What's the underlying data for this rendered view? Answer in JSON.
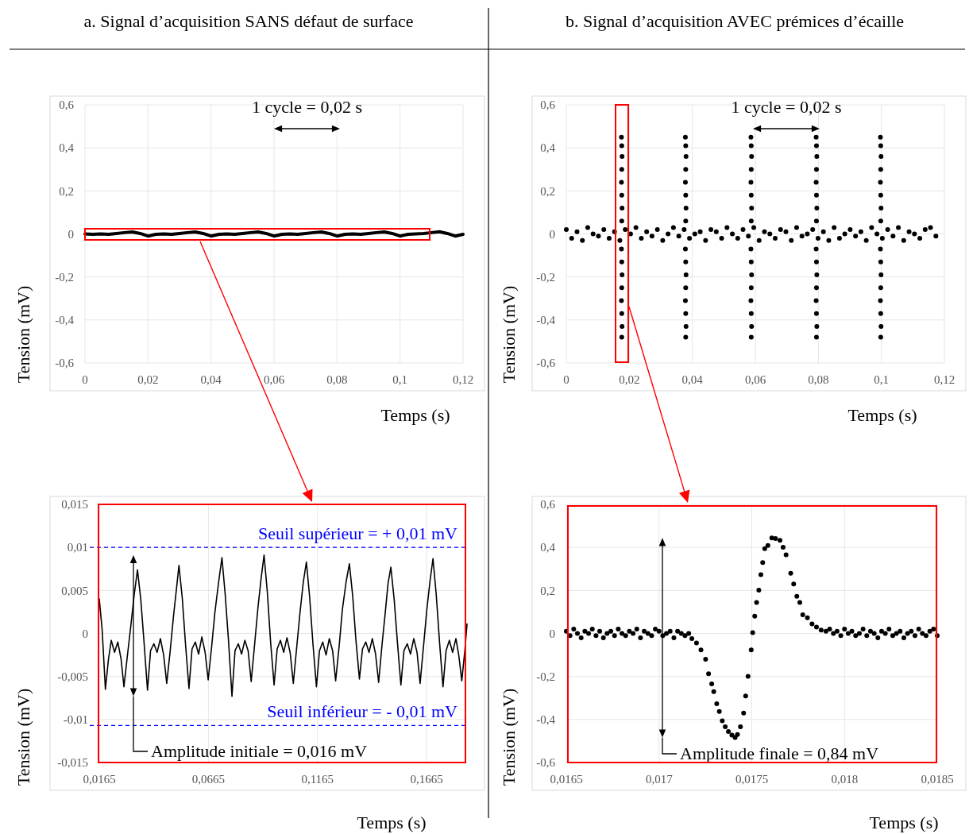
{
  "chart_data": [
    {
      "type": "line",
      "title": "a. Signal d’acquisition SANS défaut de surface",
      "xlabel": "Temps (s)",
      "ylabel": "Tension (mV)",
      "xlim": [
        0,
        0.12
      ],
      "ylim": [
        -0.6,
        0.6
      ],
      "xticks": [
        {
          "value": 0,
          "label": "0"
        },
        {
          "value": 0.02,
          "label": "0,02"
        },
        {
          "value": 0.04,
          "label": "0,04"
        },
        {
          "value": 0.06,
          "label": "0,06"
        },
        {
          "value": 0.08,
          "label": "0,08"
        },
        {
          "value": 0.1,
          "label": "0,1"
        },
        {
          "value": 0.12,
          "label": "0,12"
        }
      ],
      "yticks": [
        {
          "value": -0.6,
          "label": "-0,6"
        },
        {
          "value": -0.4,
          "label": "-0,4"
        },
        {
          "value": -0.2,
          "label": "-0,2"
        },
        {
          "value": 0,
          "label": "0"
        },
        {
          "value": 0.2,
          "label": "0,2"
        },
        {
          "value": 0.4,
          "label": "0,4"
        },
        {
          "value": 0.6,
          "label": "0,6"
        }
      ],
      "grid": true,
      "line_style": "solid",
      "x": [
        0,
        0.0025,
        0.005,
        0.0075,
        0.01,
        0.0125,
        0.015,
        0.0175,
        0.02,
        0.0225,
        0.025,
        0.0275,
        0.03,
        0.0325,
        0.035,
        0.0375,
        0.04,
        0.0425,
        0.045,
        0.0475,
        0.05,
        0.0525,
        0.055,
        0.0575,
        0.06,
        0.0625,
        0.065,
        0.0675,
        0.07,
        0.0725,
        0.075,
        0.0775,
        0.08,
        0.0825,
        0.085,
        0.0875,
        0.09,
        0.0925,
        0.095,
        0.0975,
        0.1,
        0.1025,
        0.105,
        0.1075,
        0.11,
        0.1125,
        0.115,
        0.1175,
        0.12
      ],
      "series": [
        {
          "color": "#000000",
          "values": [
            0,
            -0.002,
            0,
            -0.002,
            0.002,
            0.006,
            0.009,
            0.002,
            -0.01,
            -0.002,
            0,
            -0.002,
            0.002,
            0.006,
            0.009,
            0.002,
            -0.01,
            -0.002,
            0,
            -0.002,
            0.002,
            0.006,
            0.009,
            0.002,
            -0.01,
            -0.002,
            0,
            -0.002,
            0.002,
            0.006,
            0.009,
            0.002,
            -0.01,
            -0.002,
            0,
            -0.002,
            0.002,
            0.006,
            0.009,
            0.002,
            -0.01,
            -0.002,
            0,
            0.002,
            0.006,
            0.01,
            0.002,
            -0.01,
            -0.002
          ]
        }
      ],
      "annotations": [
        "1 cycle = 0,02 s"
      ]
    },
    {
      "type": "scatter",
      "title": "b. Signal d’acquisition AVEC prémices d’écaille",
      "xlabel": "Temps (s)",
      "ylabel": "Tension (mV)",
      "xlim": [
        0,
        0.12
      ],
      "ylim": [
        -0.6,
        0.6
      ],
      "xticks": [
        {
          "value": 0,
          "label": "0"
        },
        {
          "value": 0.02,
          "label": "0,02"
        },
        {
          "value": 0.04,
          "label": "0,04"
        },
        {
          "value": 0.06,
          "label": "0,06"
        },
        {
          "value": 0.08,
          "label": "0,08"
        },
        {
          "value": 0.1,
          "label": "0,1"
        },
        {
          "value": 0.12,
          "label": "0,12"
        }
      ],
      "yticks": [
        {
          "value": -0.6,
          "label": "-0,6"
        },
        {
          "value": -0.4,
          "label": "-0,4"
        },
        {
          "value": -0.2,
          "label": "-0,2"
        },
        {
          "value": 0,
          "label": "0"
        },
        {
          "value": 0.2,
          "label": "0,2"
        },
        {
          "value": 0.4,
          "label": "0,4"
        },
        {
          "value": 0.6,
          "label": "0,6"
        }
      ],
      "grid": true,
      "marker": "circle",
      "series": [
        {
          "color": "#000000",
          "x": [
            0,
            0.0017,
            0.0034,
            0.0051,
            0.0068,
            0.0085,
            0.0102,
            0.0119,
            0.0136,
            0.0153,
            0.017,
            0.0187,
            0.0204,
            0.0221,
            0.0238,
            0.0255,
            0.0272,
            0.0289,
            0.0306,
            0.0323,
            0.034,
            0.0357,
            0.0374,
            0.0391,
            0.0408,
            0.0425,
            0.0442,
            0.0459,
            0.0476,
            0.0493,
            0.051,
            0.0527,
            0.0544,
            0.0561,
            0.0578,
            0.0595,
            0.0612,
            0.0629,
            0.0646,
            0.0663,
            0.068,
            0.0697,
            0.0714,
            0.0731,
            0.0748,
            0.0765,
            0.0782,
            0.0799,
            0.0816,
            0.0833,
            0.085,
            0.0867,
            0.0884,
            0.0901,
            0.0918,
            0.0935,
            0.0952,
            0.0969,
            0.0986,
            0.1003,
            0.102,
            0.1037,
            0.1054,
            0.1071,
            0.1088,
            0.1105,
            0.1122,
            0.1139,
            0.1156,
            0.1173,
            0.0175,
            0.0176,
            0.0177,
            0.0176,
            0.0175,
            0.0176,
            0.0177,
            0.0176,
            0.0175,
            0.0176,
            0.0177,
            0.0176,
            0.0175,
            0.0176,
            0.0177,
            0.0176,
            0.0378,
            0.0379,
            0.038,
            0.0379,
            0.0378,
            0.0379,
            0.038,
            0.0379,
            0.0378,
            0.0379,
            0.038,
            0.0379,
            0.0378,
            0.0379,
            0.038,
            0.0379,
            0.0586,
            0.0587,
            0.0588,
            0.0587,
            0.0586,
            0.0587,
            0.0588,
            0.0587,
            0.0586,
            0.0587,
            0.0588,
            0.0587,
            0.0586,
            0.0587,
            0.0588,
            0.0587,
            0.0793,
            0.0794,
            0.0795,
            0.0794,
            0.0793,
            0.0794,
            0.0795,
            0.0794,
            0.0793,
            0.0794,
            0.0795,
            0.0794,
            0.0793,
            0.0794,
            0.0795,
            0.0794,
            0.0997,
            0.0998,
            0.0999,
            0.0998,
            0.0997,
            0.0998,
            0.0999,
            0.0998,
            0.0997,
            0.0998,
            0.0999,
            0.0998,
            0.0997,
            0.0998,
            0.0999,
            0.0998
          ],
          "values": [
            0.02,
            -0.02,
            0.01,
            -0.03,
            0.03,
            0,
            -0.01,
            0.02,
            -0.02,
            0.01,
            -0.03,
            0.02,
            0,
            0.03,
            -0.02,
            0.01,
            -0.01,
            0.02,
            -0.03,
            0,
            0.03,
            -0.01,
            0.02,
            -0.02,
            0,
            0.01,
            -0.03,
            0.02,
            0.01,
            -0.02,
            0.03,
            0,
            -0.02,
            0.02,
            -0.01,
            0.03,
            -0.03,
            0.01,
            0,
            -0.02,
            0.02,
            0.01,
            -0.03,
            0.03,
            -0.01,
            0,
            0.02,
            -0.02,
            0.01,
            -0.03,
            0.03,
            -0.02,
            0,
            0.02,
            -0.01,
            0.01,
            -0.03,
            0.03,
            0,
            -0.02,
            0.02,
            -0.01,
            0.03,
            -0.03,
            0.01,
            0,
            -0.02,
            0.02,
            0.03,
            -0.01,
            0.45,
            0.41,
            0.36,
            0.3,
            0.24,
            0.18,
            0.12,
            0.06,
            -0.07,
            -0.13,
            -0.19,
            -0.25,
            -0.31,
            -0.37,
            -0.43,
            -0.48,
            0.45,
            0.41,
            0.36,
            0.3,
            0.24,
            0.18,
            0.12,
            0.06,
            -0.07,
            -0.13,
            -0.19,
            -0.25,
            -0.31,
            -0.37,
            -0.43,
            -0.48,
            0.45,
            0.41,
            0.36,
            0.3,
            0.24,
            0.18,
            0.12,
            0.06,
            -0.07,
            -0.13,
            -0.19,
            -0.25,
            -0.31,
            -0.37,
            -0.43,
            -0.48,
            0.45,
            0.41,
            0.36,
            0.3,
            0.24,
            0.18,
            0.12,
            0.06,
            -0.07,
            -0.13,
            -0.19,
            -0.25,
            -0.31,
            -0.37,
            -0.43,
            -0.48,
            0.45,
            0.41,
            0.36,
            0.3,
            0.24,
            0.18,
            0.12,
            0.06,
            -0.07,
            -0.13,
            -0.19,
            -0.25,
            -0.31,
            -0.37,
            -0.43,
            -0.48
          ]
        }
      ],
      "annotations": [
        "1 cycle = 0,02 s"
      ]
    },
    {
      "type": "line",
      "xlabel": "Temps (s)",
      "ylabel": "Tension (mV)",
      "xlim": [
        0.0165,
        0.185
      ],
      "ylim": [
        -0.015,
        0.015
      ],
      "xticks": [
        {
          "value": 0.0165,
          "label": "0,0165"
        },
        {
          "value": 0.0665,
          "label": "0,0665"
        },
        {
          "value": 0.1165,
          "label": "0,1165"
        },
        {
          "value": 0.1665,
          "label": "0,1665"
        }
      ],
      "yticks": [
        {
          "value": -0.015,
          "label": "-0,015"
        },
        {
          "value": -0.01,
          "label": "-0,01"
        },
        {
          "value": -0.005,
          "label": "-0,005"
        },
        0,
        {
          "value": 0.005,
          "label": "0,005"
        },
        {
          "value": 0.01,
          "label": "0,01"
        },
        {
          "value": 0.015,
          "label": "0,015"
        }
      ],
      "grid": true,
      "line_style": "solid",
      "x": [
        0.0165,
        0.0178,
        0.0193,
        0.0207,
        0.022,
        0.0235,
        0.025,
        0.0265,
        0.0278,
        0.0292,
        0.031,
        0.0325,
        0.034,
        0.0355,
        0.037,
        0.0386,
        0.04,
        0.0415,
        0.043,
        0.0445,
        0.046,
        0.0474,
        0.049,
        0.0505,
        0.052,
        0.053,
        0.0545,
        0.056,
        0.0576,
        0.059,
        0.0605,
        0.062,
        0.0635,
        0.065,
        0.0664,
        0.068,
        0.0695,
        0.0712,
        0.0727,
        0.0742,
        0.0757,
        0.0773,
        0.0787,
        0.0802,
        0.0817,
        0.0832,
        0.0847,
        0.0861,
        0.0877,
        0.0892,
        0.0907,
        0.092,
        0.0935,
        0.095,
        0.0966,
        0.098,
        0.0995,
        0.101,
        0.1025,
        0.104,
        0.1054,
        0.107,
        0.1085,
        0.11,
        0.1114,
        0.1129,
        0.1144,
        0.116,
        0.1174,
        0.1189,
        0.1204,
        0.1219,
        0.1234,
        0.1248,
        0.1264,
        0.1279,
        0.1296,
        0.1311,
        0.1326,
        0.1341,
        0.1357,
        0.1371,
        0.1386,
        0.1401,
        0.1416,
        0.1431,
        0.1445,
        0.1461,
        0.1476,
        0.1488,
        0.1501,
        0.1516,
        0.1531,
        0.1547,
        0.1561,
        0.1576,
        0.1591,
        0.1606,
        0.1621,
        0.1635,
        0.1651,
        0.1666,
        0.168,
        0.1694,
        0.1709,
        0.1724,
        0.174,
        0.1754,
        0.1769,
        0.1784,
        0.1799,
        0.1812,
        0.1826,
        0.184,
        0.185
      ],
      "series": [
        {
          "color": "#000000",
          "values": [
            0.004,
            0.0005,
            -0.0065,
            -0.003,
            -0.0008,
            -0.0022,
            -0.001,
            -0.003,
            -0.0062,
            -0.003,
            0.001,
            0.0045,
            0.0074,
            0.004,
            -0.001,
            -0.0066,
            -0.002,
            -0.0012,
            -0.0022,
            -0.0006,
            -0.0025,
            -0.0058,
            -0.002,
            0.002,
            0.0055,
            0.0079,
            0.0042,
            -0.0012,
            -0.0064,
            -0.0018,
            -0.001,
            -0.0024,
            -0.0004,
            -0.0022,
            -0.0054,
            -0.0015,
            0.0025,
            0.006,
            0.0088,
            0.0045,
            -0.0008,
            -0.0073,
            -0.002,
            -0.0012,
            -0.0024,
            -0.0008,
            -0.002,
            -0.0056,
            -0.0012,
            0.003,
            0.0065,
            0.0091,
            0.0048,
            -0.001,
            -0.006,
            -0.0018,
            -0.0008,
            -0.0022,
            -0.0005,
            -0.0023,
            -0.0058,
            -0.0015,
            0.0025,
            0.006,
            0.0083,
            0.0042,
            -0.0012,
            -0.0062,
            -0.002,
            -0.001,
            -0.0025,
            -0.0006,
            -0.002,
            -0.0055,
            -0.0015,
            0.0028,
            0.006,
            0.0081,
            0.0044,
            -0.0008,
            -0.0053,
            -0.0018,
            -0.001,
            -0.0022,
            -0.0006,
            -0.0024,
            -0.0057,
            -0.0012,
            0.0026,
            0.0058,
            0.0077,
            0.004,
            -0.001,
            -0.006,
            -0.002,
            -0.0012,
            -0.0024,
            -0.0006,
            -0.0022,
            -0.0058,
            -0.0014,
            0.0028,
            0.006,
            0.0087,
            0.0045,
            -0.001,
            -0.0062,
            -0.002,
            -0.0008,
            -0.0022,
            -0.0006,
            -0.0025,
            -0.0055,
            -0.002,
            0.0011
          ]
        }
      ],
      "ref_lines": [
        {
          "axis": "y",
          "value": 0.01,
          "label": "Seuil supérieur = + 0,01 mV",
          "color": "#0000ff",
          "line_style": "dashed"
        },
        {
          "axis": "y",
          "value": -0.0107,
          "label": "Seuil inférieur = - 0,01 mV",
          "color": "#0000ff",
          "line_style": "dashed"
        }
      ],
      "annotations": [
        "Amplitude initiale = 0,016 mV"
      ]
    },
    {
      "type": "scatter",
      "xlabel": "Temps (s)",
      "ylabel": "Tension (mV)",
      "xlim": [
        0.0165,
        0.0185
      ],
      "ylim": [
        -0.6,
        0.6
      ],
      "xticks": [
        {
          "value": 0.0165,
          "label": "0,0165"
        },
        {
          "value": 0.017,
          "label": "0,017"
        },
        {
          "value": 0.0175,
          "label": "0,0175"
        },
        {
          "value": 0.018,
          "label": "0,018"
        },
        {
          "value": 0.0185,
          "label": "0,0185"
        }
      ],
      "yticks": [
        {
          "value": -0.6,
          "label": "-0,6"
        },
        {
          "value": -0.4,
          "label": "-0,4"
        },
        {
          "value": -0.2,
          "label": "-0,2"
        },
        0,
        {
          "value": 0.2,
          "label": "0,2"
        },
        {
          "value": 0.4,
          "label": "0,4"
        },
        {
          "value": 0.6,
          "label": "0,6"
        }
      ],
      "grid": true,
      "marker": "circle",
      "series": [
        {
          "color": "#000000",
          "x": [
            0.0165,
            0.01652,
            0.01654,
            0.01656,
            0.01658,
            0.0166,
            0.01662,
            0.01664,
            0.01666,
            0.01668,
            0.0167,
            0.01672,
            0.01674,
            0.01676,
            0.01678,
            0.0168,
            0.01682,
            0.01684,
            0.01686,
            0.01688,
            0.0169,
            0.01692,
            0.01694,
            0.01696,
            0.01698,
            0.017,
            0.01702,
            0.01704,
            0.01706,
            0.01708,
            0.0171,
            0.01712,
            0.01714,
            0.01716,
            0.017177,
            0.017202,
            0.017226,
            0.017251,
            0.017267,
            0.017284,
            0.017295,
            0.017311,
            0.017325,
            0.017341,
            0.017357,
            0.017374,
            0.017393,
            0.01741,
            0.017423,
            0.017439,
            0.017456,
            0.017467,
            0.01748,
            0.017497,
            0.017505,
            0.017516,
            0.017526,
            0.017538,
            0.017549,
            0.017559,
            0.01757,
            0.017587,
            0.017608,
            0.017628,
            0.017652,
            0.017669,
            0.017685,
            0.01771,
            0.017726,
            0.017743,
            0.017759,
            0.017775,
            0.0178,
            0.017825,
            0.017849,
            0.017874,
            0.0179,
            0.01792,
            0.01794,
            0.01796,
            0.01798,
            0.018,
            0.01802,
            0.01804,
            0.01806,
            0.01808,
            0.0181,
            0.01812,
            0.01814,
            0.01816,
            0.01818,
            0.0182,
            0.01822,
            0.01824,
            0.01826,
            0.01828,
            0.0183,
            0.01832,
            0.01834,
            0.01836,
            0.01838,
            0.0184,
            0.01842,
            0.01844,
            0.01846,
            0.01848,
            0.0185
          ],
          "values": [
            0.01,
            -0.01,
            0.02,
            0,
            -0.02,
            0.01,
            0,
            0.02,
            -0.01,
            0.01,
            -0.02,
            0,
            0.01,
            -0.01,
            0.02,
            0,
            -0.01,
            0.01,
            0,
            0.02,
            -0.02,
            0.01,
            0,
            -0.01,
            0.02,
            0.01,
            -0.01,
            0,
            0.01,
            -0.02,
            0.01,
            0,
            -0.01,
            0,
            -0.024,
            -0.044,
            -0.077,
            -0.12,
            -0.187,
            -0.234,
            -0.27,
            -0.327,
            -0.363,
            -0.406,
            -0.434,
            -0.456,
            -0.473,
            -0.484,
            -0.47,
            -0.434,
            -0.37,
            -0.291,
            -0.199,
            -0.077,
            0.004,
            0.08,
            0.144,
            0.201,
            0.273,
            0.33,
            0.394,
            0.409,
            0.444,
            0.441,
            0.433,
            0.401,
            0.366,
            0.28,
            0.23,
            0.173,
            0.144,
            0.087,
            0.073,
            0.044,
            0.03,
            0.016,
            0.01,
            0.02,
            0,
            0.01,
            -0.01,
            0.02,
            0,
            0.01,
            -0.01,
            0,
            0.02,
            -0.01,
            0.01,
            0,
            -0.02,
            0.01,
            0,
            0.02,
            -0.01,
            0,
            0.01,
            -0.02,
            0,
            0.01,
            -0.01,
            0.02,
            0,
            -0.01,
            0.01,
            0.02,
            -0.01
          ]
        }
      ],
      "annotations": [
        "Amplitude finale = 0,84 mV"
      ]
    }
  ]
}
